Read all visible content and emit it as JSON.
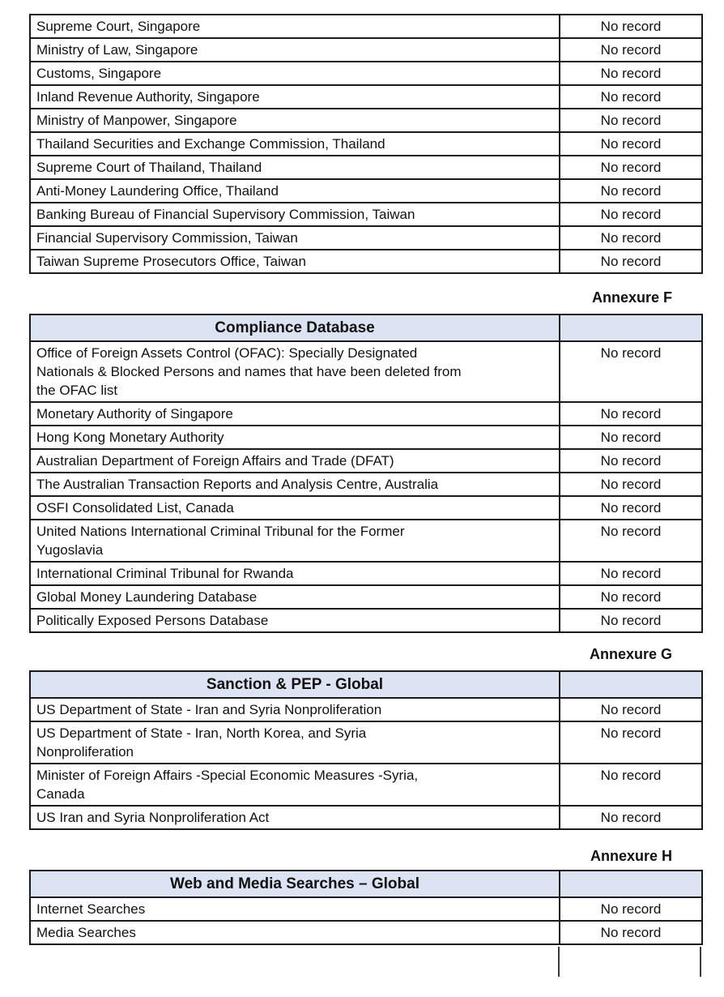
{
  "tables": [
    {
      "annexure_label": null,
      "title": null,
      "rows": [
        {
          "source": "Supreme Court, Singapore",
          "result": "No record"
        },
        {
          "source": "Ministry of Law, Singapore",
          "result": "No record"
        },
        {
          "source": "Customs, Singapore",
          "result": "No record"
        },
        {
          "source": "Inland Revenue Authority, Singapore",
          "result": "No record"
        },
        {
          "source": "Ministry of Manpower, Singapore",
          "result": "No record"
        },
        {
          "source": "Thailand Securities and Exchange Commission, Thailand",
          "result": "No record"
        },
        {
          "source": "Supreme Court of Thailand, Thailand",
          "result": "No record"
        },
        {
          "source": "Anti-Money Laundering Office, Thailand",
          "result": "No record"
        },
        {
          "source": "Banking Bureau of Financial Supervisory Commission, Taiwan",
          "result": "No record"
        },
        {
          "source": "Financial Supervisory Commission, Taiwan",
          "result": "No record"
        },
        {
          "source": "Taiwan Supreme Prosecutors Office, Taiwan",
          "result": "No record"
        }
      ]
    },
    {
      "annexure_label": "Annexure F",
      "title": "Compliance Database",
      "rows": [
        {
          "source": "Office of Foreign Assets Control (OFAC): Specially Designated\nNationals & Blocked Persons and names that have been deleted from\nthe OFAC list",
          "result": "No record"
        },
        {
          "source": "Monetary Authority of Singapore",
          "result": "No record"
        },
        {
          "source": "Hong Kong Monetary Authority",
          "result": "No record"
        },
        {
          "source": "Australian Department of Foreign Affairs and Trade (DFAT)",
          "result": "No record"
        },
        {
          "source": "The Australian Transaction Reports and Analysis Centre, Australia",
          "result": "No record"
        },
        {
          "source": "OSFI Consolidated List, Canada",
          "result": "No record"
        },
        {
          "source": "United Nations International Criminal Tribunal for the Former\nYugoslavia",
          "result": "No record"
        },
        {
          "source": "International Criminal Tribunal for Rwanda",
          "result": "No record"
        },
        {
          "source": "Global Money Laundering Database",
          "result": "No record"
        },
        {
          "source": "Politically Exposed Persons Database",
          "result": "No record"
        }
      ]
    },
    {
      "annexure_label": "Annexure G",
      "title": "Sanction & PEP - Global",
      "rows": [
        {
          "source": "US Department of State - Iran and Syria Nonproliferation",
          "result": "No record"
        },
        {
          "source": "US Department of State - Iran, North Korea, and Syria\nNonproliferation",
          "result": "No record"
        },
        {
          "source": "Minister of Foreign Affairs -Special Economic Measures -Syria,\nCanada",
          "result": "No record"
        },
        {
          "source": "US Iran and Syria Nonproliferation Act",
          "result": "No record"
        }
      ]
    },
    {
      "annexure_label": "Annexure H",
      "title": "Web and Media Searches – Global",
      "rows": [
        {
          "source": "Internet Searches",
          "result": "No record"
        },
        {
          "source": "Media Searches",
          "result": "No record"
        }
      ]
    }
  ],
  "colors": {
    "header_fill": "#dce4f3",
    "border": "#1a1a1a",
    "text": "#111111"
  }
}
